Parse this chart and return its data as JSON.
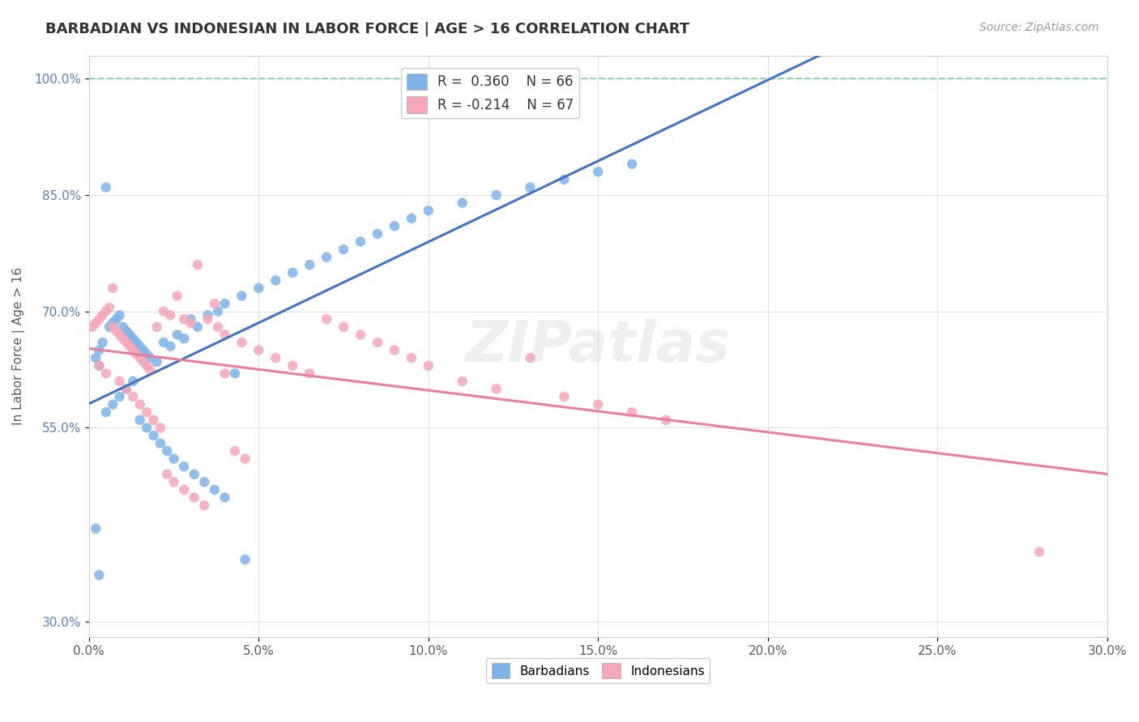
{
  "title": "BARBADIAN VS INDONESIAN IN LABOR FORCE | AGE > 16 CORRELATION CHART",
  "source": "Source: ZipAtlas.com",
  "ylabel": "In Labor Force | Age > 16",
  "xlim": [
    0.0,
    0.3
  ],
  "ylim": [
    0.28,
    1.03
  ],
  "xticks": [
    0.0,
    0.05,
    0.1,
    0.15,
    0.2,
    0.25,
    0.3
  ],
  "xticklabels": [
    "0.0%",
    "5.0%",
    "10.0%",
    "15.0%",
    "20.0%",
    "25.0%",
    "30.0%"
  ],
  "yticks": [
    0.3,
    0.55,
    0.7,
    0.85,
    1.0
  ],
  "yticklabels": [
    "30.0%",
    "55.0%",
    "70.0%",
    "85.0%",
    "100.0%"
  ],
  "barbadian_color": "#7eb3e8",
  "indonesian_color": "#f4a7b9",
  "barbadian_line_color": "#4472c4",
  "indonesian_line_color": "#e87f9e",
  "dashed_line_color": "#90d4b0",
  "watermark": "ZIPatlas",
  "legend_r1": "R =  0.360",
  "legend_n1": "N = 66",
  "legend_r2": "R = -0.214",
  "legend_n2": "N = 67",
  "barbadian_x": [
    0.005,
    0.002,
    0.003,
    0.004,
    0.006,
    0.007,
    0.008,
    0.009,
    0.01,
    0.011,
    0.012,
    0.013,
    0.014,
    0.015,
    0.016,
    0.017,
    0.018,
    0.02,
    0.022,
    0.024,
    0.026,
    0.028,
    0.03,
    0.032,
    0.035,
    0.038,
    0.04,
    0.045,
    0.05,
    0.055,
    0.06,
    0.065,
    0.07,
    0.075,
    0.08,
    0.085,
    0.09,
    0.095,
    0.1,
    0.11,
    0.12,
    0.13,
    0.14,
    0.15,
    0.16,
    0.003,
    0.005,
    0.007,
    0.009,
    0.011,
    0.013,
    0.015,
    0.017,
    0.019,
    0.021,
    0.023,
    0.025,
    0.028,
    0.031,
    0.034,
    0.037,
    0.04,
    0.043,
    0.046,
    0.002,
    0.003
  ],
  "barbadian_y": [
    0.86,
    0.64,
    0.65,
    0.66,
    0.68,
    0.685,
    0.69,
    0.695,
    0.68,
    0.675,
    0.67,
    0.665,
    0.66,
    0.655,
    0.65,
    0.645,
    0.64,
    0.635,
    0.66,
    0.655,
    0.67,
    0.665,
    0.69,
    0.68,
    0.695,
    0.7,
    0.71,
    0.72,
    0.73,
    0.74,
    0.75,
    0.76,
    0.77,
    0.78,
    0.79,
    0.8,
    0.81,
    0.82,
    0.83,
    0.84,
    0.85,
    0.86,
    0.87,
    0.88,
    0.89,
    0.63,
    0.57,
    0.58,
    0.59,
    0.6,
    0.61,
    0.56,
    0.55,
    0.54,
    0.53,
    0.52,
    0.51,
    0.5,
    0.49,
    0.48,
    0.47,
    0.46,
    0.62,
    0.38,
    0.42,
    0.36
  ],
  "indonesian_x": [
    0.001,
    0.002,
    0.003,
    0.004,
    0.005,
    0.006,
    0.007,
    0.008,
    0.009,
    0.01,
    0.011,
    0.012,
    0.013,
    0.014,
    0.015,
    0.016,
    0.017,
    0.018,
    0.02,
    0.022,
    0.024,
    0.026,
    0.028,
    0.03,
    0.032,
    0.035,
    0.038,
    0.04,
    0.045,
    0.05,
    0.055,
    0.06,
    0.065,
    0.07,
    0.075,
    0.08,
    0.085,
    0.09,
    0.095,
    0.1,
    0.11,
    0.12,
    0.13,
    0.14,
    0.15,
    0.16,
    0.17,
    0.003,
    0.005,
    0.007,
    0.009,
    0.011,
    0.013,
    0.015,
    0.017,
    0.019,
    0.021,
    0.023,
    0.025,
    0.028,
    0.031,
    0.034,
    0.037,
    0.04,
    0.043,
    0.046,
    0.28
  ],
  "indonesian_y": [
    0.68,
    0.685,
    0.69,
    0.695,
    0.7,
    0.705,
    0.68,
    0.675,
    0.67,
    0.665,
    0.66,
    0.655,
    0.65,
    0.645,
    0.64,
    0.635,
    0.63,
    0.625,
    0.68,
    0.7,
    0.695,
    0.72,
    0.69,
    0.685,
    0.76,
    0.69,
    0.68,
    0.67,
    0.66,
    0.65,
    0.64,
    0.63,
    0.62,
    0.69,
    0.68,
    0.67,
    0.66,
    0.65,
    0.64,
    0.63,
    0.61,
    0.6,
    0.64,
    0.59,
    0.58,
    0.57,
    0.56,
    0.63,
    0.62,
    0.73,
    0.61,
    0.6,
    0.59,
    0.58,
    0.57,
    0.56,
    0.55,
    0.49,
    0.48,
    0.47,
    0.46,
    0.45,
    0.71,
    0.62,
    0.52,
    0.51,
    0.39
  ]
}
